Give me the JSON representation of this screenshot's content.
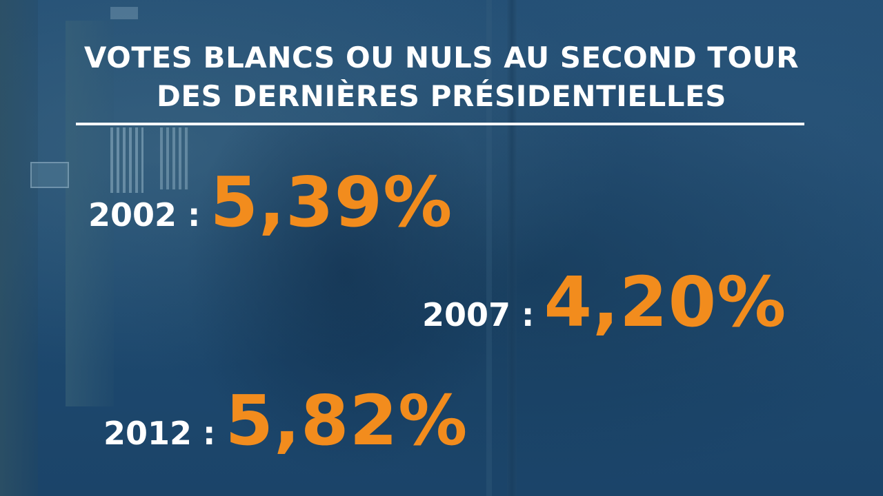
{
  "title": {
    "line1": "VOTES BLANCS OU NULS AU SECOND TOUR",
    "line2": "DES DERNIÈRES PRÉSIDENTIELLES"
  },
  "stats": [
    {
      "year": "2002 :",
      "value": "5,39%"
    },
    {
      "year": "2007 :",
      "value": "4,20%"
    },
    {
      "year": "2012 :",
      "value": "5,82%"
    }
  ],
  "colors": {
    "background": "#1f4c73",
    "accent": "#f28c1d",
    "text": "#ffffff"
  }
}
